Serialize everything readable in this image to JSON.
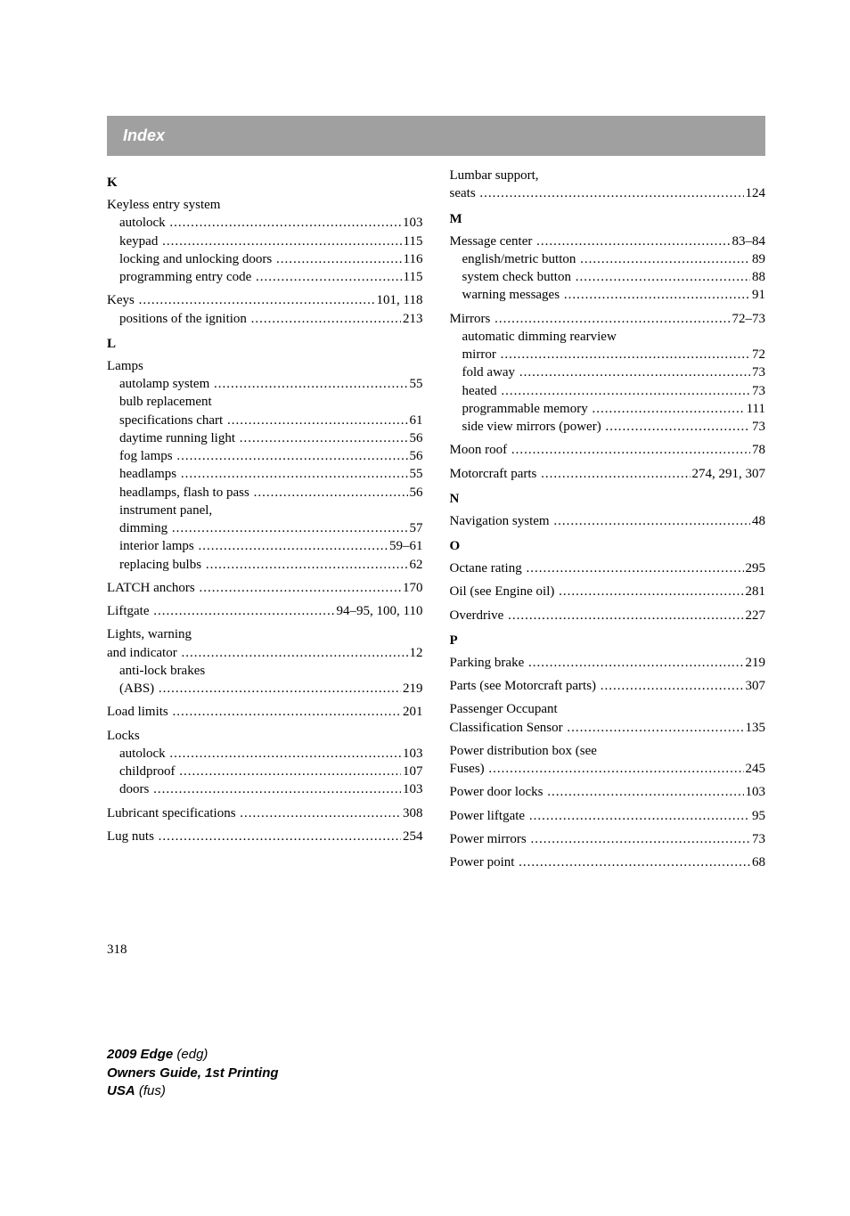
{
  "header": {
    "title": "Index"
  },
  "pageNumber": "318",
  "footer": {
    "model": "2009 Edge",
    "modelCode": "(edg)",
    "guide": "Owners Guide, 1st Printing",
    "region": "USA",
    "regionCode": "(fus)"
  },
  "left": [
    {
      "type": "letter",
      "text": "K"
    },
    {
      "type": "main-nodots",
      "label": "Keyless entry system"
    },
    {
      "type": "sub",
      "label": "autolock",
      "page": "103"
    },
    {
      "type": "sub",
      "label": "keypad",
      "page": "115"
    },
    {
      "type": "sub",
      "label": "locking and unlocking doors",
      "page": "116",
      "tight": true
    },
    {
      "type": "sub",
      "label": "programming entry code",
      "page": "115"
    },
    {
      "type": "main",
      "label": "Keys",
      "page": "101, 118"
    },
    {
      "type": "sub",
      "label": "positions of the ignition",
      "page": "213"
    },
    {
      "type": "letter",
      "text": "L"
    },
    {
      "type": "main-nodots",
      "label": "Lamps"
    },
    {
      "type": "sub",
      "label": "autolamp system",
      "page": "55"
    },
    {
      "type": "sub-nodots",
      "label": "bulb replacement"
    },
    {
      "type": "sub",
      "label": "specifications chart",
      "page": "61"
    },
    {
      "type": "sub",
      "label": "daytime running light",
      "page": "56"
    },
    {
      "type": "sub",
      "label": "fog lamps",
      "page": "56"
    },
    {
      "type": "sub",
      "label": "headlamps",
      "page": "55"
    },
    {
      "type": "sub",
      "label": "headlamps, flash to pass",
      "page": "56"
    },
    {
      "type": "sub-nodots",
      "label": "instrument panel,"
    },
    {
      "type": "sub",
      "label": "dimming",
      "page": "57"
    },
    {
      "type": "sub",
      "label": "interior lamps",
      "page": "59–61"
    },
    {
      "type": "sub",
      "label": "replacing bulbs",
      "page": "62"
    },
    {
      "type": "main",
      "label": "LATCH anchors",
      "page": "170"
    },
    {
      "type": "main",
      "label": "Liftgate",
      "page": "94–95, 100, 110"
    },
    {
      "type": "main-nodots",
      "label": "Lights, warning"
    },
    {
      "type": "sub-nom",
      "label": "and indicator",
      "page": "12"
    },
    {
      "type": "sub-nodots",
      "label": "anti-lock brakes"
    },
    {
      "type": "sub",
      "label": "(ABS)",
      "page": "219"
    },
    {
      "type": "main",
      "label": "Load limits",
      "page": "201"
    },
    {
      "type": "main-nodots",
      "label": "Locks"
    },
    {
      "type": "sub",
      "label": "autolock",
      "page": "103"
    },
    {
      "type": "sub",
      "label": "childproof",
      "page": "107"
    },
    {
      "type": "sub",
      "label": "doors",
      "page": "103"
    },
    {
      "type": "main",
      "label": "Lubricant specifications",
      "page": "308"
    },
    {
      "type": "main",
      "label": "Lug nuts",
      "page": "254"
    }
  ],
  "right": [
    {
      "type": "main-nodots-first",
      "label": "Lumbar support,"
    },
    {
      "type": "sub-nom",
      "label": "seats",
      "page": "124"
    },
    {
      "type": "letter",
      "text": "M"
    },
    {
      "type": "main",
      "label": "Message center",
      "page": "83–84"
    },
    {
      "type": "sub",
      "label": "english/metric button",
      "page": "89"
    },
    {
      "type": "sub",
      "label": "system check button",
      "page": "88"
    },
    {
      "type": "sub",
      "label": "warning messages",
      "page": "91"
    },
    {
      "type": "main",
      "label": "Mirrors",
      "page": "72–73"
    },
    {
      "type": "sub-nodots",
      "label": "automatic dimming rearview"
    },
    {
      "type": "sub",
      "label": "mirror",
      "page": "72"
    },
    {
      "type": "sub",
      "label": "fold away",
      "page": "73"
    },
    {
      "type": "sub",
      "label": "heated",
      "page": "73"
    },
    {
      "type": "sub",
      "label": "programmable memory",
      "page": "111"
    },
    {
      "type": "sub",
      "label": "side view mirrors (power)",
      "page": "73"
    },
    {
      "type": "main",
      "label": "Moon roof",
      "page": "78"
    },
    {
      "type": "main",
      "label": "Motorcraft parts",
      "page": "274, 291, 307"
    },
    {
      "type": "letter",
      "text": "N"
    },
    {
      "type": "main",
      "label": "Navigation system",
      "page": "48"
    },
    {
      "type": "letter",
      "text": "O"
    },
    {
      "type": "main",
      "label": "Octane rating",
      "page": "295"
    },
    {
      "type": "main",
      "label": "Oil (see Engine oil)",
      "page": "281"
    },
    {
      "type": "main",
      "label": "Overdrive",
      "page": "227"
    },
    {
      "type": "letter",
      "text": "P"
    },
    {
      "type": "main",
      "label": "Parking brake",
      "page": "219"
    },
    {
      "type": "main",
      "label": "Parts (see Motorcraft parts)",
      "page": "307"
    },
    {
      "type": "main-nodots",
      "label": "Passenger Occupant"
    },
    {
      "type": "sub-nom",
      "label": "Classification Sensor",
      "page": "135"
    },
    {
      "type": "main-nodots",
      "label": "Power distribution box (see"
    },
    {
      "type": "sub-nom",
      "label": "Fuses)",
      "page": "245"
    },
    {
      "type": "main",
      "label": "Power door locks",
      "page": "103"
    },
    {
      "type": "main",
      "label": "Power liftgate",
      "page": "95"
    },
    {
      "type": "main",
      "label": "Power mirrors",
      "page": "73"
    },
    {
      "type": "main",
      "label": "Power point",
      "page": "68"
    }
  ]
}
